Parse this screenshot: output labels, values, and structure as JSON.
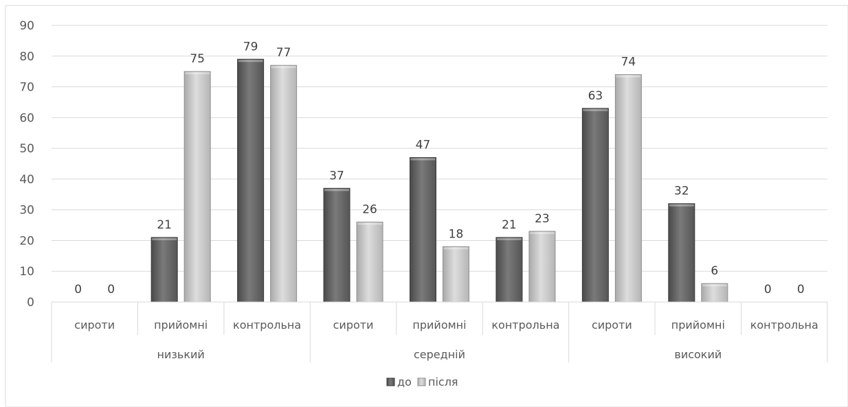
{
  "chart_data": {
    "type": "bar",
    "ylim": [
      0,
      90
    ],
    "yticks": [
      0,
      10,
      20,
      30,
      40,
      50,
      60,
      70,
      80,
      90
    ],
    "grid": true,
    "legend_position": "bottom",
    "groups": [
      {
        "label": "низький",
        "categories": [
          "сироти",
          "прийомні",
          "контрольна"
        ]
      },
      {
        "label": "середній",
        "categories": [
          "сироти",
          "прийомні",
          "контрольна"
        ]
      },
      {
        "label": "високий",
        "categories": [
          "сироти",
          "прийомні",
          "контрольна"
        ]
      }
    ],
    "series": [
      {
        "name": "до",
        "color": "#6b6b6b",
        "values": [
          0,
          21,
          79,
          37,
          47,
          21,
          63,
          32,
          0
        ]
      },
      {
        "name": "після",
        "color": "#c8c8c8",
        "values": [
          0,
          75,
          77,
          26,
          18,
          23,
          74,
          6,
          0
        ]
      }
    ]
  }
}
